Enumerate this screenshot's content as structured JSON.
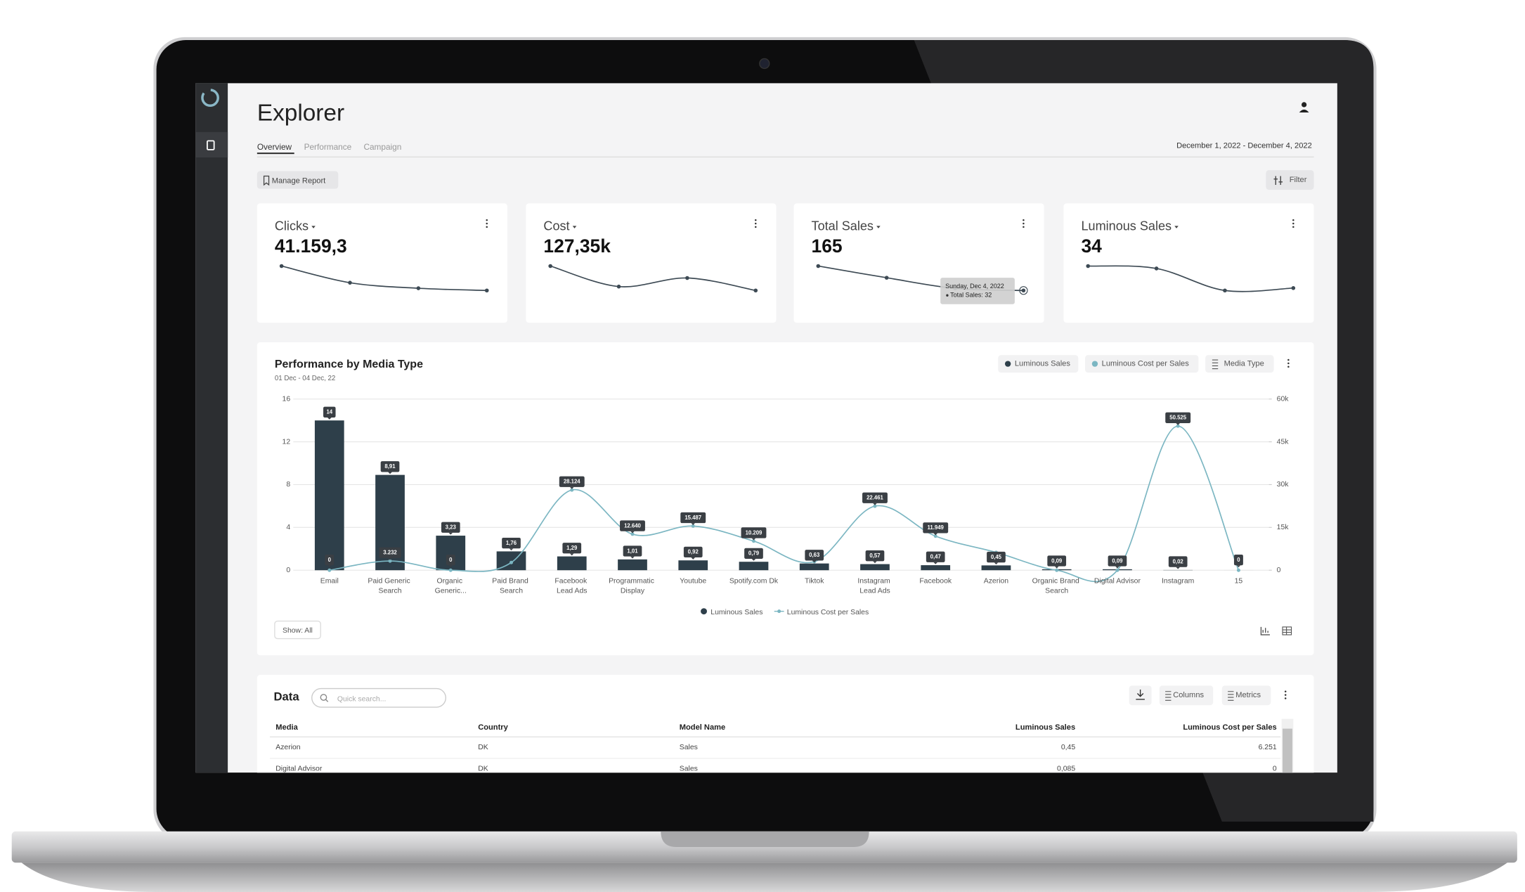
{
  "header": {
    "title": "Explorer",
    "tabs": [
      "Overview",
      "Performance",
      "Campaign"
    ],
    "date_range": "December 1, 2022 - December 4, 2022",
    "manage_report": "Manage Report",
    "filter": "Filter"
  },
  "kpis": [
    {
      "label": "Clicks",
      "value": "41.159,3",
      "values": [
        12000,
        10200,
        9600,
        9359.3
      ]
    },
    {
      "label": "Cost",
      "value": "127,35k",
      "values": [
        36000,
        30000,
        32500,
        28850
      ]
    },
    {
      "label": "Total Sales",
      "value": "165",
      "values": [
        55,
        44,
        34,
        32
      ]
    },
    {
      "label": "Luminous Sales",
      "value": "34",
      "values": [
        11,
        10.5,
        6,
        6.5
      ]
    }
  ],
  "tooltip": {
    "title": "Sunday, Dec 4, 2022",
    "text": "Total Sales: 32"
  },
  "chart_controls": {
    "media_type": "Media Type",
    "show_all": "Show: All"
  },
  "chart_data": {
    "type": "bar",
    "title": "Performance by Media Type",
    "subtitle": "01 Dec - 04 Dec, 22",
    "categories": [
      "Email",
      "Paid Generic Search",
      "Organic Generic...",
      "Paid Brand Search",
      "Facebook Lead Ads",
      "Programmatic Display",
      "Youtube",
      "Spotify.com Dk",
      "Tiktok",
      "Instagram Lead Ads",
      "Facebook",
      "Azerion",
      "Organic Brand Search",
      "Digital Advisor",
      "Instagram",
      "15"
    ],
    "series": [
      {
        "name": "Luminous Sales",
        "color": "#2e3f4a",
        "values": [
          14,
          8.91,
          3.23,
          1.76,
          1.29,
          1.01,
          0.92,
          0.79,
          0.63,
          0.57,
          0.47,
          0.45,
          0.09,
          0.09,
          0.02,
          0
        ],
        "value_labels": [
          "14",
          "8,91",
          "3,23",
          "1,76",
          "1,29",
          "1,01",
          "0,92",
          "0,79",
          "0,63",
          "0,57",
          "0,47",
          "0,45",
          "0,09",
          "0,09",
          "0,02",
          "0"
        ]
      },
      {
        "name": "Luminous Cost per Sales",
        "color": "#7bb6c2",
        "type": "line",
        "axis": "y2",
        "values": [
          0,
          3232,
          0,
          2700,
          28124,
          12640,
          15487,
          10209,
          3000,
          22461,
          11949,
          6251,
          0,
          0,
          50525,
          0
        ],
        "value_labels": [
          "0",
          "3.232",
          "0",
          null,
          "28.124",
          "12.640",
          "15.487",
          "10.209",
          null,
          "22.461",
          "11.949",
          null,
          null,
          null,
          "50.525",
          null
        ]
      }
    ],
    "ylim": [
      0,
      16
    ],
    "yticks": [
      0,
      4,
      8,
      12,
      16
    ],
    "y2lim": [
      0,
      60000
    ],
    "y2ticks": [
      0,
      {
        "value": 15000,
        "label": "15k"
      },
      {
        "value": 30000,
        "label": "30k"
      },
      {
        "value": 45000,
        "label": "45k"
      },
      {
        "value": 60000,
        "label": "60k"
      }
    ],
    "grid": true
  },
  "data_table": {
    "title": "Data",
    "search_placeholder": "Quick search...",
    "columns_button": "Columns",
    "metrics_button": "Metrics",
    "columns": [
      "Media",
      "Country",
      "Model Name",
      "Luminous Sales",
      "Luminous Cost per Sales"
    ],
    "rows": [
      [
        "Azerion",
        "DK",
        "Sales",
        "0,45",
        "6.251"
      ],
      [
        "Digital Advisor",
        "DK",
        "Sales",
        "0,085",
        "0"
      ]
    ]
  }
}
